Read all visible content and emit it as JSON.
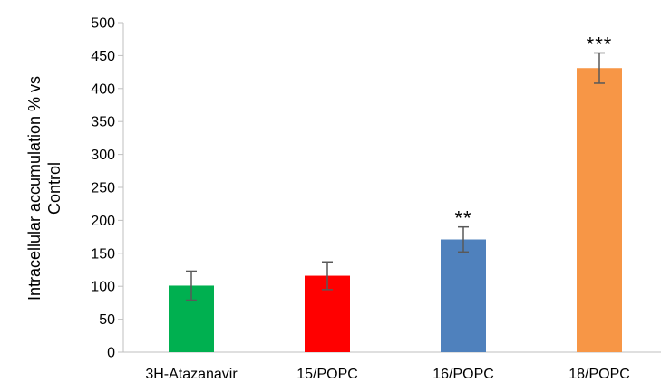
{
  "chart_data": {
    "type": "bar",
    "title": "",
    "xlabel": "",
    "ylabel_lines": [
      "Intracellular accumulation % vs",
      "Control"
    ],
    "categories": [
      "3H-Atazanavir",
      "15/POPC",
      "16/POPC",
      "18/POPC"
    ],
    "values": [
      101,
      116,
      171,
      431
    ],
    "errors": [
      22,
      21,
      19,
      23
    ],
    "significance": [
      "",
      "",
      "**",
      "***"
    ],
    "colors": [
      "#00b050",
      "#ff0000",
      "#4f81bd",
      "#f79646"
    ],
    "error_bar_color": "#595959",
    "ylim": [
      0,
      500
    ],
    "yticks": [
      0,
      50,
      100,
      150,
      200,
      250,
      300,
      350,
      400,
      450,
      500
    ],
    "grid": false,
    "legend": "none"
  }
}
